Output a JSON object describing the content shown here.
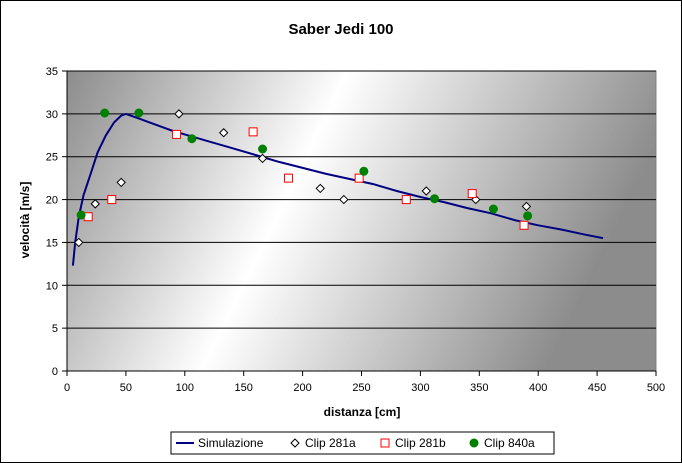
{
  "chart_data": {
    "type": "scatter",
    "title": "Saber Jedi 100",
    "xlabel": "distanza [cm]",
    "ylabel": "velocità [m/s]",
    "xlim": [
      0,
      500
    ],
    "ylim": [
      0,
      35
    ],
    "xticks": [
      0,
      50,
      100,
      150,
      200,
      250,
      300,
      350,
      400,
      450,
      500
    ],
    "yticks": [
      0,
      5,
      10,
      15,
      20,
      25,
      30,
      35
    ],
    "grid": "horizontal",
    "legend": "bottom",
    "plot_background": "gradient from dark gray (left) to white (center) to dark gray (right)",
    "series": [
      {
        "name": "Simulazione",
        "kind": "line",
        "color": "#000080",
        "points": [
          [
            5,
            12.3
          ],
          [
            7,
            15
          ],
          [
            10,
            18
          ],
          [
            14,
            20.5
          ],
          [
            20,
            23
          ],
          [
            26,
            25.5
          ],
          [
            33,
            27.5
          ],
          [
            40,
            29
          ],
          [
            46,
            29.8
          ],
          [
            50,
            30
          ],
          [
            60,
            29.5
          ],
          [
            70,
            29
          ],
          [
            80,
            28.5
          ],
          [
            90,
            28
          ],
          [
            100,
            27.6
          ],
          [
            120,
            26.8
          ],
          [
            140,
            26
          ],
          [
            160,
            25.2
          ],
          [
            180,
            24.4
          ],
          [
            200,
            23.7
          ],
          [
            220,
            23
          ],
          [
            240,
            22.4
          ],
          [
            260,
            21.8
          ],
          [
            280,
            21
          ],
          [
            300,
            20.3
          ],
          [
            320,
            19.7
          ],
          [
            340,
            19
          ],
          [
            360,
            18.4
          ],
          [
            380,
            17.6
          ],
          [
            400,
            17
          ],
          [
            420,
            16.5
          ],
          [
            440,
            15.9
          ],
          [
            455,
            15.5
          ]
        ]
      },
      {
        "name": "Clip 281a",
        "kind": "marker",
        "marker": "diamond",
        "color": "#000000",
        "points": [
          [
            10,
            15
          ],
          [
            24,
            19.5
          ],
          [
            46,
            22
          ],
          [
            95,
            30
          ],
          [
            133,
            27.8
          ],
          [
            166,
            24.8
          ],
          [
            215,
            21.3
          ],
          [
            235,
            20
          ],
          [
            305,
            21
          ],
          [
            347,
            20
          ],
          [
            390,
            19.2
          ]
        ]
      },
      {
        "name": "Clip 281b",
        "kind": "marker",
        "marker": "square",
        "color": "#ff0000",
        "points": [
          [
            18,
            18
          ],
          [
            38,
            20
          ],
          [
            93,
            27.6
          ],
          [
            158,
            27.9
          ],
          [
            188,
            22.5
          ],
          [
            248,
            22.5
          ],
          [
            288,
            20
          ],
          [
            344,
            20.7
          ],
          [
            388,
            17
          ]
        ]
      },
      {
        "name": "Clip 840a",
        "kind": "marker",
        "marker": "circle",
        "color": "#008000",
        "points": [
          [
            12,
            18.2
          ],
          [
            32,
            30.1
          ],
          [
            61,
            30.1
          ],
          [
            106,
            27.1
          ],
          [
            166,
            25.9
          ],
          [
            252,
            23.3
          ],
          [
            312,
            20.1
          ],
          [
            362,
            18.9
          ],
          [
            391,
            18.1
          ]
        ]
      }
    ]
  }
}
